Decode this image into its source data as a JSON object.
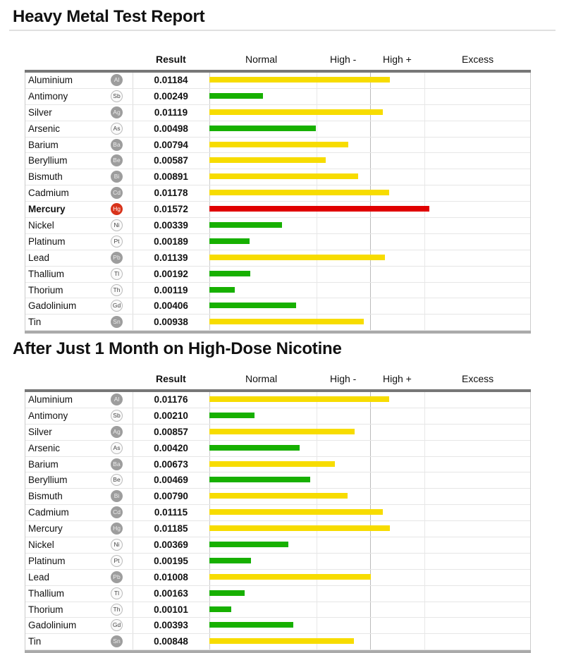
{
  "colors": {
    "normal": "#17b000",
    "high": "#f7dc00",
    "excess": "#e00000"
  },
  "chart_data": [
    {
      "type": "bar",
      "title": "Heavy Metal Test Report",
      "columns": {
        "result": "Result",
        "bands": [
          "Normal",
          "High -",
          "High +",
          "Excess"
        ]
      },
      "band_limits": [
        0,
        0.005,
        0.01,
        0.015,
        0.03
      ],
      "rows": [
        {
          "name": "Aluminium",
          "symbol": "Al",
          "style": "filled",
          "value": "0.01184"
        },
        {
          "name": "Antimony",
          "symbol": "Sb",
          "style": "outline",
          "value": "0.00249"
        },
        {
          "name": "Silver",
          "symbol": "Ag",
          "style": "filled",
          "value": "0.01119"
        },
        {
          "name": "Arsenic",
          "symbol": "As",
          "style": "outline",
          "value": "0.00498"
        },
        {
          "name": "Barium",
          "symbol": "Ba",
          "style": "filled",
          "value": "0.00794"
        },
        {
          "name": "Beryllium",
          "symbol": "Be",
          "style": "filled",
          "value": "0.00587"
        },
        {
          "name": "Bismuth",
          "symbol": "Bi",
          "style": "filled",
          "value": "0.00891"
        },
        {
          "name": "Cadmium",
          "symbol": "Cd",
          "style": "filled",
          "value": "0.01178"
        },
        {
          "name": "Mercury",
          "symbol": "Hg",
          "style": "red",
          "value": "0.01572",
          "alert": true
        },
        {
          "name": "Nickel",
          "symbol": "Ni",
          "style": "outline",
          "value": "0.00339"
        },
        {
          "name": "Platinum",
          "symbol": "Pt",
          "style": "outline",
          "value": "0.00189"
        },
        {
          "name": "Lead",
          "symbol": "Pb",
          "style": "filled",
          "value": "0.01139"
        },
        {
          "name": "Thallium",
          "symbol": "Tl",
          "style": "outline",
          "value": "0.00192"
        },
        {
          "name": "Thorium",
          "symbol": "Th",
          "style": "outline",
          "value": "0.00119"
        },
        {
          "name": "Gadolinium",
          "symbol": "Gd",
          "style": "outline",
          "value": "0.00406"
        },
        {
          "name": "Tin",
          "symbol": "Sn",
          "style": "filled",
          "value": "0.00938"
        }
      ]
    },
    {
      "type": "bar",
      "title": "After Just 1 Month on High-Dose Nicotine",
      "columns": {
        "result": "Result",
        "bands": [
          "Normal",
          "High -",
          "High +",
          "Excess"
        ]
      },
      "band_limits": [
        0,
        0.005,
        0.01,
        0.015,
        0.03
      ],
      "rows": [
        {
          "name": "Aluminium",
          "symbol": "Al",
          "style": "filled",
          "value": "0.01176"
        },
        {
          "name": "Antimony",
          "symbol": "Sb",
          "style": "outline",
          "value": "0.00210"
        },
        {
          "name": "Silver",
          "symbol": "Ag",
          "style": "filled",
          "value": "0.00857"
        },
        {
          "name": "Arsenic",
          "symbol": "As",
          "style": "outline",
          "value": "0.00420"
        },
        {
          "name": "Barium",
          "symbol": "Ba",
          "style": "filled",
          "value": "0.00673"
        },
        {
          "name": "Beryllium",
          "symbol": "Be",
          "style": "outline",
          "value": "0.00469"
        },
        {
          "name": "Bismuth",
          "symbol": "Bi",
          "style": "filled",
          "value": "0.00790"
        },
        {
          "name": "Cadmium",
          "symbol": "Cd",
          "style": "filled",
          "value": "0.01115"
        },
        {
          "name": "Mercury",
          "symbol": "Hg",
          "style": "filled",
          "value": "0.01185"
        },
        {
          "name": "Nickel",
          "symbol": "Ni",
          "style": "outline",
          "value": "0.00369"
        },
        {
          "name": "Platinum",
          "symbol": "Pt",
          "style": "outline",
          "value": "0.00195"
        },
        {
          "name": "Lead",
          "symbol": "Pb",
          "style": "filled",
          "value": "0.01008"
        },
        {
          "name": "Thallium",
          "symbol": "Tl",
          "style": "outline",
          "value": "0.00163"
        },
        {
          "name": "Thorium",
          "symbol": "Th",
          "style": "outline",
          "value": "0.00101"
        },
        {
          "name": "Gadolinium",
          "symbol": "Gd",
          "style": "outline",
          "value": "0.00393"
        },
        {
          "name": "Tin",
          "symbol": "Sn",
          "style": "filled",
          "value": "0.00848"
        }
      ]
    }
  ]
}
